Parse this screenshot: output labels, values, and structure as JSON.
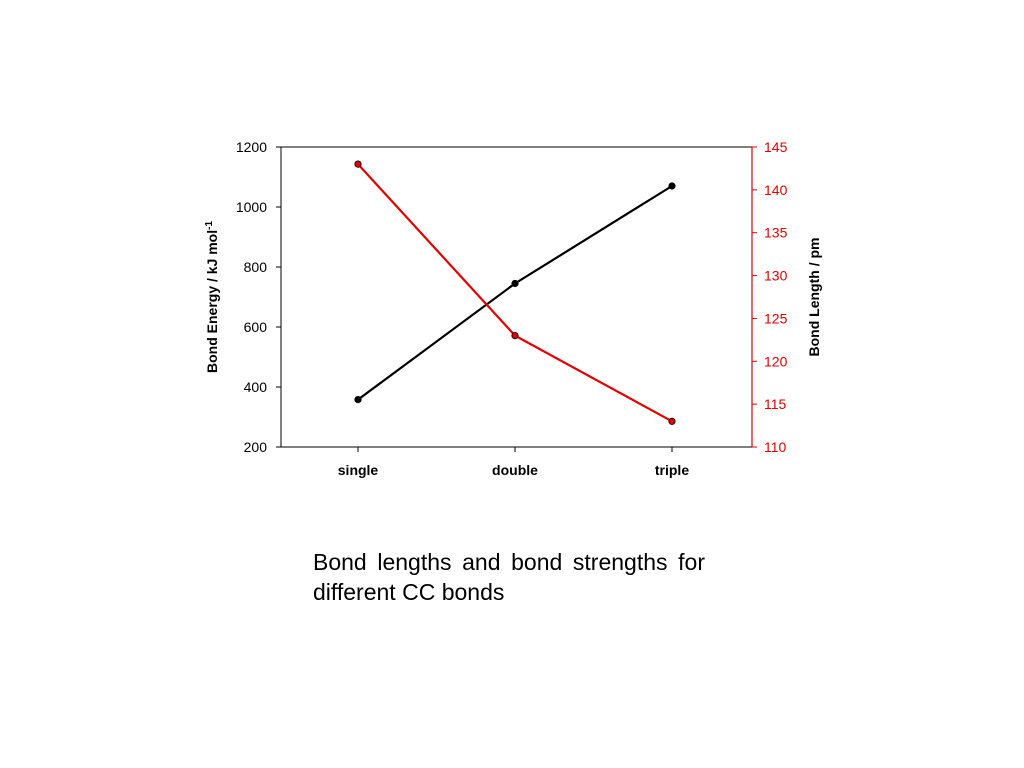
{
  "chart_data": {
    "type": "line",
    "categories": [
      "single",
      "double",
      "triple"
    ],
    "series": [
      {
        "axis": "left",
        "color": "#000000",
        "values": [
          358,
          745,
          1070
        ]
      },
      {
        "axis": "right",
        "color": "#e00000",
        "values": [
          143,
          123,
          113
        ]
      }
    ],
    "y_left": {
      "label_main": "Bond Energy / kJ mol",
      "label_sup": "-1",
      "range": [
        200,
        1200
      ],
      "ticks": [
        "1200",
        "1000",
        "800",
        "600",
        "400",
        "200"
      ],
      "color": "#000000"
    },
    "y_right": {
      "label": "Bond Length / pm",
      "range": [
        110,
        145
      ],
      "ticks": [
        "145",
        "140",
        "135",
        "130",
        "125",
        "120",
        "115",
        "110"
      ],
      "color": "#e00000"
    },
    "grid": false,
    "legend": "none"
  },
  "caption": "Bond lengths and bond strengths for different CC bonds"
}
